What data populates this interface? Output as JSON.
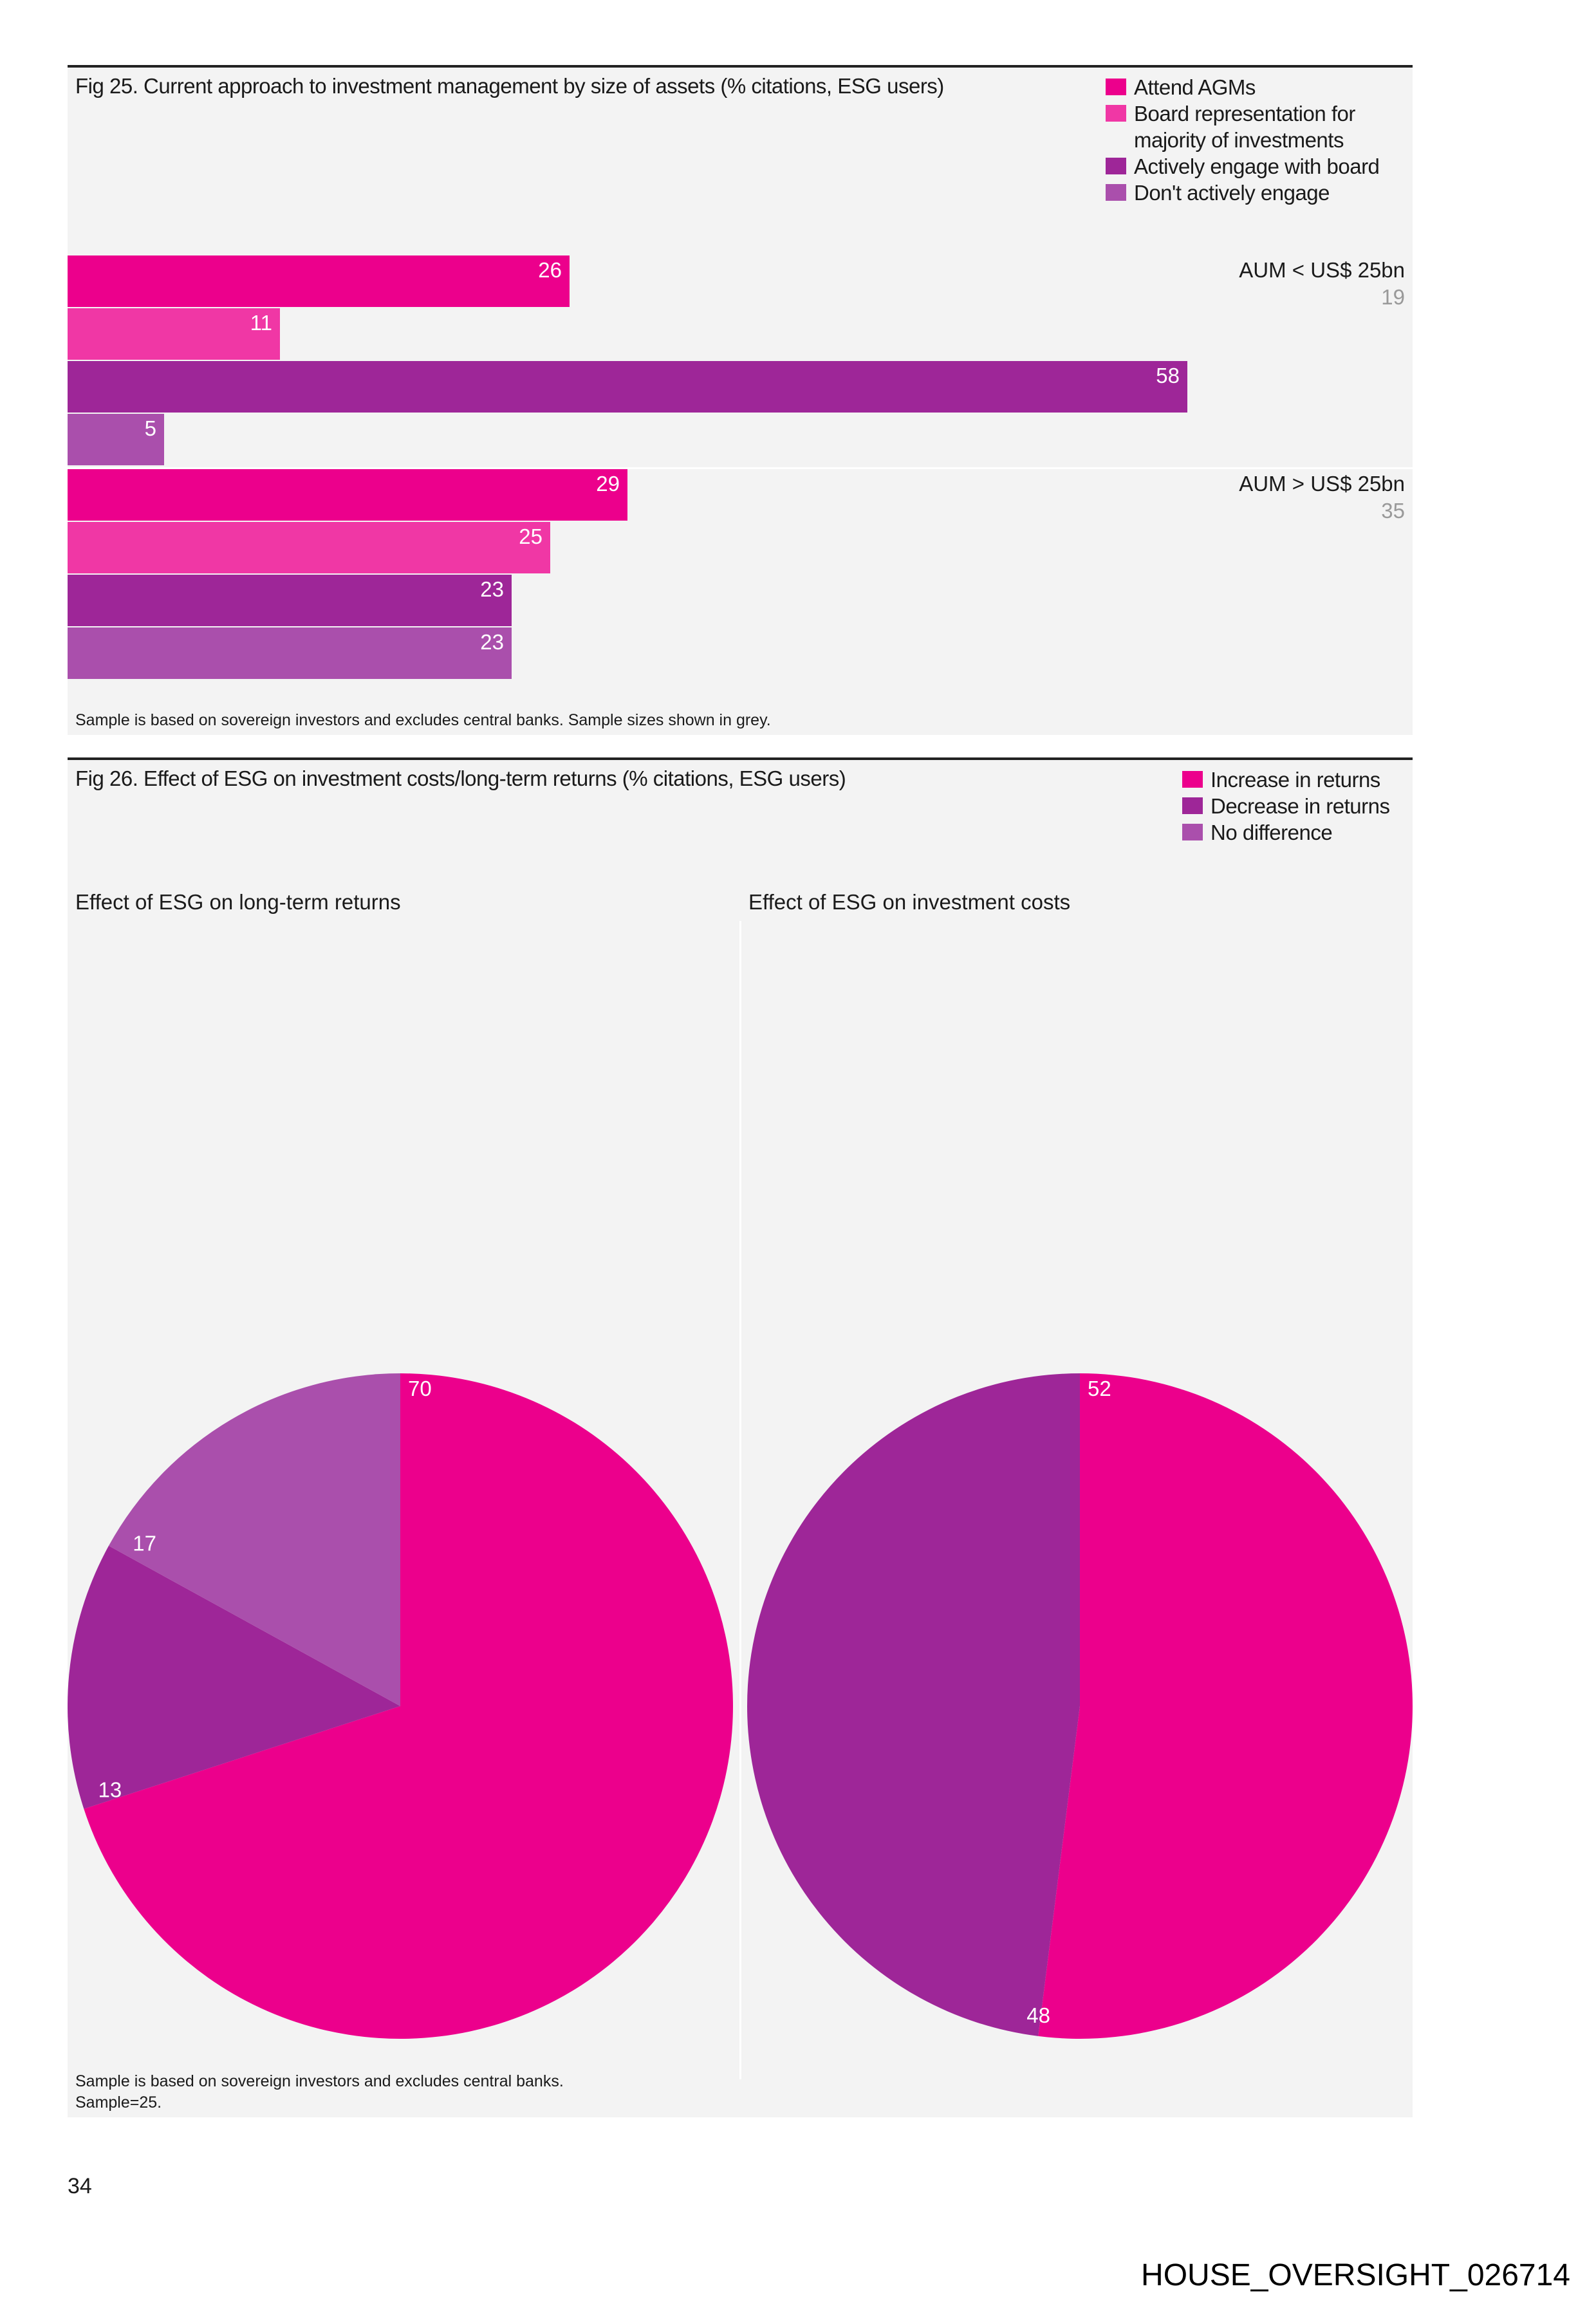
{
  "colors": {
    "attend": "#EC008C",
    "board": "#F037A5",
    "engage": "#9E2698",
    "none": "#AA4FAC"
  },
  "chart_data": [
    {
      "type": "bar",
      "orientation": "horizontal",
      "title": "Fig 25. Current approach to investment management by size of assets (% citations, ESG users)",
      "legend": [
        "Attend AGMs",
        "Board representation for majority of investments",
        "Actively engage with board",
        "Don't actively engage"
      ],
      "legend_placement": "top-right",
      "groups": [
        {
          "label": "AUM < US$ 25bn",
          "sample": "19",
          "values": [
            26,
            11,
            58,
            5
          ]
        },
        {
          "label": "AUM > US$ 25bn",
          "sample": "35",
          "values": [
            29,
            25,
            23,
            23
          ]
        }
      ],
      "footnote": "Sample is based on sovereign investors and excludes central banks. Sample sizes shown in grey."
    },
    {
      "type": "pie",
      "title": "Fig 26. Effect of ESG on investment costs/long-term returns (% citations, ESG users)",
      "legend": [
        "Increase in returns",
        "Decrease in returns",
        "No difference"
      ],
      "legend_placement": "top-right",
      "pies": [
        {
          "title": "Effect of ESG on long-term returns",
          "values": [
            70,
            13,
            17
          ]
        },
        {
          "title": "Effect of ESG on investment costs",
          "values": [
            52,
            48,
            0
          ]
        }
      ],
      "footnote": [
        "Sample is based on sovereign investors and excludes central banks.",
        "Sample=25."
      ]
    }
  ],
  "page_number": "34",
  "stamp": "HOUSE_OVERSIGHT_026714"
}
